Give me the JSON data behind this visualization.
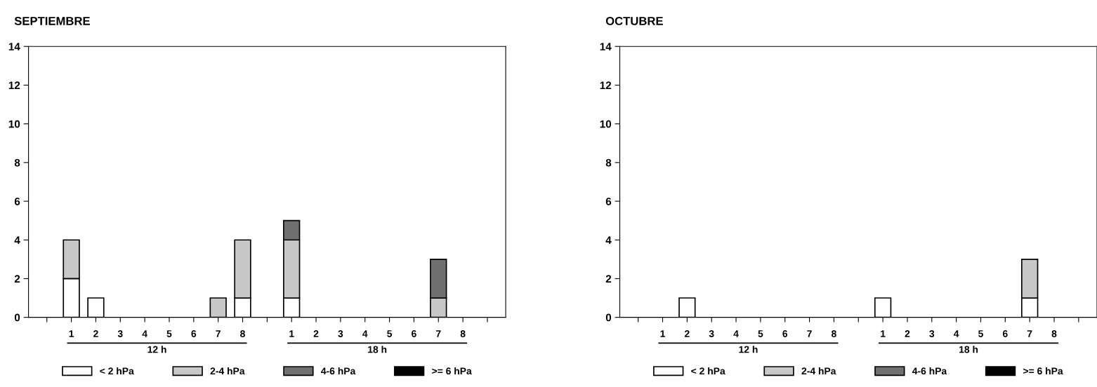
{
  "chart_data": [
    {
      "type": "bar",
      "title": "SEPTIEMBRE",
      "stacked": true,
      "categories": [
        null,
        "1",
        "2",
        "3",
        "4",
        "5",
        "6",
        "7",
        "8",
        null,
        "1",
        "2",
        "3",
        "4",
        "5",
        "6",
        "7",
        "8",
        null
      ],
      "ylim": [
        0,
        14
      ],
      "yticks": [
        0,
        2,
        4,
        6,
        8,
        10,
        12,
        14
      ],
      "grid": false,
      "legend": "bottom",
      "annotations": [
        "12 h",
        "18 h"
      ],
      "series": [
        {
          "name": "< 2 hPa",
          "color": "#ffffff",
          "values": [
            0,
            2,
            1,
            0,
            0,
            0,
            0,
            0,
            1,
            0,
            1,
            0,
            0,
            0,
            0,
            0,
            0,
            0,
            0
          ]
        },
        {
          "name": "2-4 hPa",
          "color": "#c8c8c8",
          "values": [
            0,
            2,
            0,
            0,
            0,
            0,
            0,
            1,
            3,
            0,
            3,
            0,
            0,
            0,
            0,
            0,
            1,
            0,
            0
          ]
        },
        {
          "name": "4-6 hPa",
          "color": "#707070",
          "values": [
            0,
            0,
            0,
            0,
            0,
            0,
            0,
            0,
            0,
            0,
            1,
            0,
            0,
            0,
            0,
            0,
            2,
            0,
            0
          ]
        },
        {
          "name": ">= 6 hPa",
          "color": "#000000",
          "values": [
            0,
            0,
            0,
            0,
            0,
            0,
            0,
            0,
            0,
            0,
            0,
            0,
            0,
            0,
            0,
            0,
            0,
            0,
            0
          ]
        }
      ]
    },
    {
      "type": "bar",
      "title": "OCTUBRE",
      "stacked": true,
      "categories": [
        null,
        "1",
        "2",
        "3",
        "4",
        "5",
        "6",
        "7",
        "8",
        null,
        "1",
        "2",
        "3",
        "4",
        "5",
        "6",
        "7",
        "8",
        null
      ],
      "ylim": [
        0,
        14
      ],
      "yticks": [
        0,
        2,
        4,
        6,
        8,
        10,
        12,
        14
      ],
      "grid": false,
      "legend": "bottom",
      "annotations": [
        "12 h",
        "18 h"
      ],
      "series": [
        {
          "name": "< 2 hPa",
          "color": "#ffffff",
          "values": [
            0,
            0,
            1,
            0,
            0,
            0,
            0,
            0,
            0,
            0,
            1,
            0,
            0,
            0,
            0,
            0,
            1,
            0,
            0
          ]
        },
        {
          "name": "2-4 hPa",
          "color": "#c8c8c8",
          "values": [
            0,
            0,
            0,
            0,
            0,
            0,
            0,
            0,
            0,
            0,
            0,
            0,
            0,
            0,
            0,
            0,
            2,
            0,
            0
          ]
        },
        {
          "name": "4-6 hPa",
          "color": "#707070",
          "values": [
            0,
            0,
            0,
            0,
            0,
            0,
            0,
            0,
            0,
            0,
            0,
            0,
            0,
            0,
            0,
            0,
            0,
            0,
            0
          ]
        },
        {
          "name": ">= 6 hPa",
          "color": "#000000",
          "values": [
            0,
            0,
            0,
            0,
            0,
            0,
            0,
            0,
            0,
            0,
            0,
            0,
            0,
            0,
            0,
            0,
            0,
            0,
            0
          ]
        }
      ]
    }
  ]
}
